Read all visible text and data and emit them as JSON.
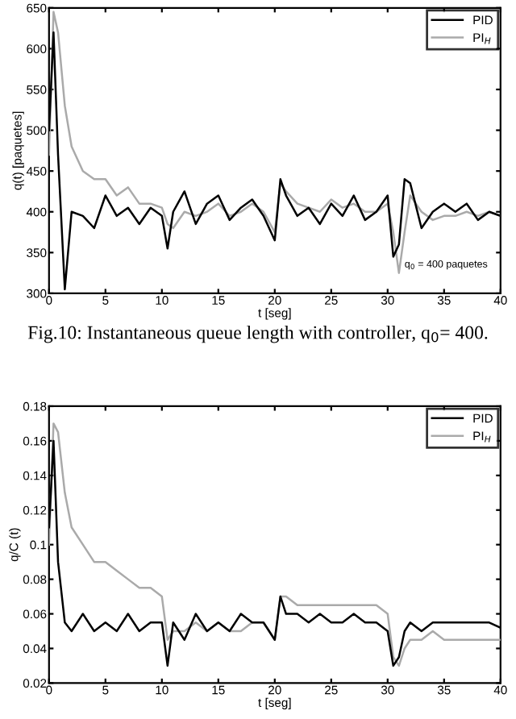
{
  "chart_data": [
    {
      "type": "line",
      "xlabel": "t [seg]",
      "ylabel": "q(t) [paquetes]",
      "xlim": [
        0,
        40
      ],
      "ylim": [
        300,
        650
      ],
      "xticks": [
        0,
        5,
        10,
        15,
        20,
        25,
        30,
        35,
        40
      ],
      "yticks": [
        300,
        350,
        400,
        450,
        500,
        550,
        600,
        650
      ],
      "grid": false,
      "legend": "top right",
      "marker": "none",
      "line_style": "solid",
      "x": [
        0,
        0.4,
        0.8,
        1.4,
        2,
        3,
        4,
        5,
        6,
        7,
        8,
        9,
        10,
        10.5,
        11,
        12,
        13,
        14,
        15,
        16,
        17,
        18,
        19,
        20,
        20.5,
        21,
        22,
        23,
        24,
        25,
        26,
        27,
        28,
        29,
        30,
        30.5,
        31,
        31.5,
        32,
        33,
        34,
        35,
        36,
        37,
        38,
        39,
        40
      ],
      "series": [
        {
          "name": "PID",
          "color": "#000000",
          "values": [
            500,
            620,
            470,
            305,
            400,
            395,
            380,
            420,
            395,
            405,
            385,
            405,
            395,
            355,
            400,
            425,
            385,
            410,
            420,
            390,
            405,
            415,
            395,
            365,
            440,
            420,
            395,
            405,
            385,
            410,
            395,
            420,
            390,
            400,
            420,
            345,
            360,
            440,
            435,
            380,
            400,
            410,
            400,
            410,
            390,
            400,
            395
          ]
        },
        {
          "name": "PI$_{H}$",
          "color": "#aaaaaa",
          "values": [
            470,
            645,
            620,
            530,
            480,
            450,
            440,
            440,
            420,
            430,
            410,
            410,
            405,
            385,
            380,
            400,
            395,
            400,
            410,
            395,
            400,
            410,
            400,
            375,
            435,
            425,
            410,
            405,
            400,
            415,
            405,
            410,
            400,
            400,
            410,
            375,
            325,
            375,
            420,
            400,
            390,
            395,
            395,
            400,
            395,
            400,
            395
          ]
        }
      ],
      "annotations": [
        {
          "text": "q$_{0}$ = 400 paquetes",
          "x": 31.5,
          "y": 335
        },
        "Fig.10: Instantaneous queue length with controller, q$_{0}$= 400."
      ]
    },
    {
      "type": "line",
      "xlabel": "t [seg]",
      "ylabel": "q/C (t)",
      "xlim": [
        0,
        40
      ],
      "ylim": [
        0.02,
        0.18
      ],
      "xticks": [
        0,
        5,
        10,
        15,
        20,
        25,
        30,
        35,
        40
      ],
      "yticks": [
        0.02,
        0.04,
        0.06,
        0.08,
        0.1,
        0.12,
        0.14,
        0.16,
        0.18
      ],
      "grid": false,
      "legend": "top right",
      "marker": "none",
      "line_style": "solid",
      "x": [
        0,
        0.4,
        0.8,
        1.4,
        2,
        3,
        4,
        5,
        6,
        7,
        8,
        9,
        10,
        10.5,
        11,
        12,
        13,
        14,
        15,
        16,
        17,
        18,
        19,
        20,
        20.5,
        21,
        22,
        23,
        24,
        25,
        26,
        27,
        28,
        29,
        30,
        30.5,
        31,
        31.5,
        32,
        33,
        34,
        35,
        36,
        37,
        38,
        39,
        40
      ],
      "series": [
        {
          "name": "PID",
          "color": "#000000",
          "values": [
            0.11,
            0.16,
            0.09,
            0.055,
            0.05,
            0.06,
            0.05,
            0.055,
            0.05,
            0.06,
            0.05,
            0.055,
            0.055,
            0.03,
            0.055,
            0.045,
            0.06,
            0.05,
            0.055,
            0.05,
            0.06,
            0.055,
            0.055,
            0.045,
            0.07,
            0.06,
            0.06,
            0.055,
            0.06,
            0.055,
            0.055,
            0.06,
            0.055,
            0.055,
            0.05,
            0.03,
            0.035,
            0.05,
            0.055,
            0.05,
            0.055,
            0.055,
            0.055,
            0.055,
            0.055,
            0.055,
            0.052
          ]
        },
        {
          "name": "PI$_{H}$",
          "color": "#aaaaaa",
          "values": [
            0.1,
            0.17,
            0.165,
            0.13,
            0.11,
            0.1,
            0.09,
            0.09,
            0.085,
            0.08,
            0.075,
            0.075,
            0.07,
            0.045,
            0.05,
            0.05,
            0.055,
            0.05,
            0.055,
            0.05,
            0.05,
            0.055,
            0.055,
            0.045,
            0.07,
            0.07,
            0.065,
            0.065,
            0.065,
            0.065,
            0.065,
            0.065,
            0.065,
            0.065,
            0.06,
            0.035,
            0.03,
            0.04,
            0.045,
            0.045,
            0.05,
            0.045,
            0.045,
            0.045,
            0.045,
            0.045,
            0.045
          ]
        }
      ]
    }
  ]
}
